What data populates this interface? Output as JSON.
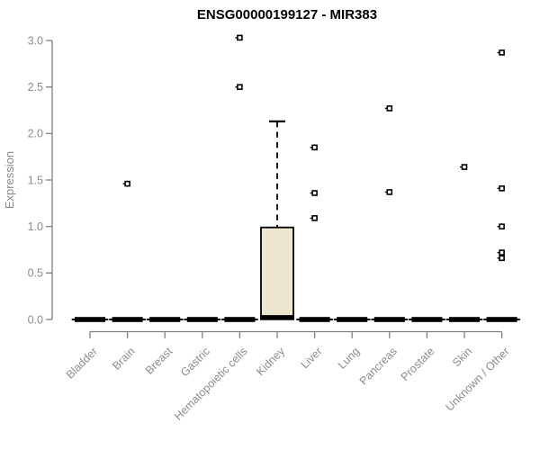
{
  "colors": {
    "box_fill": "#ede6ce",
    "box_stroke": "#000000",
    "median_color": "#000000",
    "whisker_color": "#000000",
    "outlier_stroke": "#000000",
    "outlier_fill": "#ffffff",
    "axis_line": "#808080",
    "tick_label": "#8c8c8c",
    "title_color": "#000000",
    "background": "#ffffff"
  },
  "chart_data": {
    "type": "boxplot",
    "title": "ENSG00000199127 - MIR383",
    "xlabel": "",
    "ylabel": "Expression",
    "ylim": [
      0.0,
      3.0
    ],
    "yticks": [
      0.0,
      0.5,
      1.0,
      1.5,
      2.0,
      2.5,
      3.0
    ],
    "grid": false,
    "legend": "none",
    "categories": [
      "Bladder",
      "Brain",
      "Breast",
      "Gastric",
      "Hematopoietic cells",
      "Kidney",
      "Liver",
      "Lung",
      "Pancreas",
      "Prostate",
      "Skin",
      "Unknown / Other"
    ],
    "boxes": [
      {
        "category": "Bladder",
        "q1": 0.0,
        "median": 0.0,
        "q3": 0.0,
        "whisker_low": 0.0,
        "whisker_high": 0.0,
        "outliers": []
      },
      {
        "category": "Brain",
        "q1": 0.0,
        "median": 0.0,
        "q3": 0.0,
        "whisker_low": 0.0,
        "whisker_high": 0.0,
        "outliers": [
          1.46
        ]
      },
      {
        "category": "Breast",
        "q1": 0.0,
        "median": 0.0,
        "q3": 0.0,
        "whisker_low": 0.0,
        "whisker_high": 0.0,
        "outliers": []
      },
      {
        "category": "Gastric",
        "q1": 0.0,
        "median": 0.0,
        "q3": 0.0,
        "whisker_low": 0.0,
        "whisker_high": 0.0,
        "outliers": []
      },
      {
        "category": "Hematopoietic cells",
        "q1": 0.0,
        "median": 0.0,
        "q3": 0.0,
        "whisker_low": 0.0,
        "whisker_high": 0.0,
        "outliers": [
          3.03,
          2.5
        ]
      },
      {
        "category": "Kidney",
        "q1": 0.02,
        "median": 0.02,
        "q3": 0.99,
        "whisker_low": 0.0,
        "whisker_high": 2.13,
        "outliers": []
      },
      {
        "category": "Liver",
        "q1": 0.0,
        "median": 0.0,
        "q3": 0.0,
        "whisker_low": 0.0,
        "whisker_high": 0.0,
        "outliers": [
          1.85,
          1.36,
          1.09
        ]
      },
      {
        "category": "Lung",
        "q1": 0.0,
        "median": 0.0,
        "q3": 0.0,
        "whisker_low": 0.0,
        "whisker_high": 0.0,
        "outliers": []
      },
      {
        "category": "Pancreas",
        "q1": 0.0,
        "median": 0.0,
        "q3": 0.0,
        "whisker_low": 0.0,
        "whisker_high": 0.0,
        "outliers": [
          2.27,
          1.37
        ]
      },
      {
        "category": "Prostate",
        "q1": 0.0,
        "median": 0.0,
        "q3": 0.0,
        "whisker_low": 0.0,
        "whisker_high": 0.0,
        "outliers": []
      },
      {
        "category": "Skin",
        "q1": 0.0,
        "median": 0.0,
        "q3": 0.0,
        "whisker_low": 0.0,
        "whisker_high": 0.0,
        "outliers": [
          1.64
        ]
      },
      {
        "category": "Unknown / Other",
        "q1": 0.0,
        "median": 0.0,
        "q3": 0.0,
        "whisker_low": 0.0,
        "whisker_high": 0.0,
        "outliers": [
          2.87,
          1.41,
          1.0,
          0.72,
          0.66
        ]
      }
    ]
  }
}
